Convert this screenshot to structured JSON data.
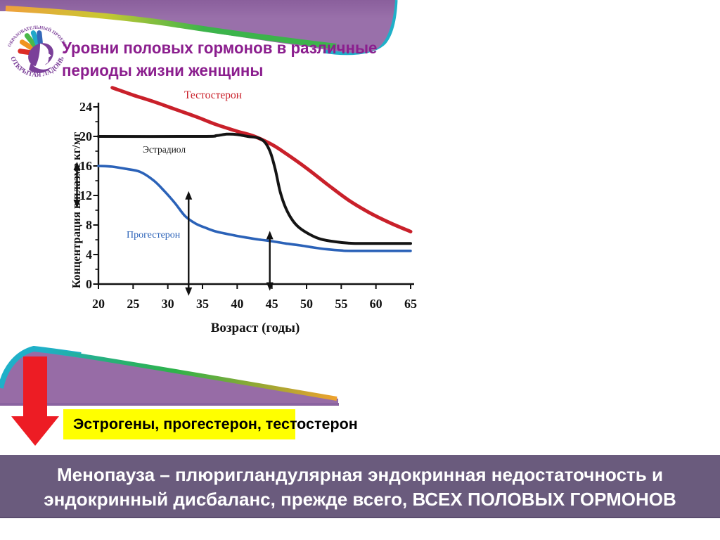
{
  "title": {
    "line1": "Уровни половых гормонов в различные",
    "line2": "периоды жизни женщины"
  },
  "logo": {
    "top_text": "ОБРАЗОВАТЕЛЬНЫЙ ПРОЕКТ",
    "bottom_text": "· ОТКРЫТАЯ ЛАДОНЬ ·"
  },
  "chart_data": {
    "type": "line",
    "title": "",
    "xlabel": "Возраст (годы)",
    "ylabel": "Концентрация в плазме кг/мг",
    "xlim": [
      20,
      65
    ],
    "ylim": [
      0,
      24
    ],
    "xticks": [
      20,
      25,
      30,
      35,
      40,
      45,
      50,
      55,
      60,
      65
    ],
    "yticks": [
      0,
      4,
      8,
      12,
      16,
      20,
      24
    ],
    "grid": false,
    "legend_position": "inline-labels",
    "series": [
      {
        "name": "Тестостерон",
        "color": "#c9202a",
        "points": [
          [
            22,
            26.6
          ],
          [
            25,
            25.6
          ],
          [
            28,
            24.7
          ],
          [
            31,
            23.7
          ],
          [
            34,
            22.7
          ],
          [
            37,
            21.6
          ],
          [
            40,
            20.7
          ],
          [
            42.5,
            20.0
          ],
          [
            45,
            18.9
          ],
          [
            47,
            17.7
          ],
          [
            50,
            15.7
          ],
          [
            53,
            13.5
          ],
          [
            56,
            11.4
          ],
          [
            59,
            9.7
          ],
          [
            62,
            8.3
          ],
          [
            65,
            7.1
          ]
        ]
      },
      {
        "name": "Эстрадиол",
        "color": "#141414",
        "points": [
          [
            20,
            20
          ],
          [
            35,
            20
          ],
          [
            37,
            20.1
          ],
          [
            38.5,
            20.3
          ],
          [
            40,
            20.25
          ],
          [
            41.5,
            20.0
          ],
          [
            43,
            19.8
          ],
          [
            44,
            19.2
          ],
          [
            44.8,
            17.8
          ],
          [
            45.5,
            15.5
          ],
          [
            46.2,
            12.5
          ],
          [
            47,
            10.3
          ],
          [
            48,
            8.6
          ],
          [
            49,
            7.6
          ],
          [
            50.5,
            6.7
          ],
          [
            52,
            6.1
          ],
          [
            54,
            5.75
          ],
          [
            56,
            5.55
          ],
          [
            58,
            5.5
          ],
          [
            65,
            5.5
          ]
        ]
      },
      {
        "name": "Прогестерон",
        "color": "#2b62b8",
        "points": [
          [
            20,
            16
          ],
          [
            22,
            15.9
          ],
          [
            24,
            15.6
          ],
          [
            26,
            15.2
          ],
          [
            28,
            14.0
          ],
          [
            29.5,
            12.6
          ],
          [
            31,
            11.0
          ],
          [
            32.5,
            9.2
          ],
          [
            34,
            8.2
          ],
          [
            35.5,
            7.6
          ],
          [
            37,
            7.1
          ],
          [
            39,
            6.7
          ],
          [
            41,
            6.35
          ],
          [
            43,
            6.05
          ],
          [
            45,
            5.8
          ],
          [
            47,
            5.5
          ],
          [
            49,
            5.25
          ],
          [
            51,
            4.95
          ],
          [
            53,
            4.7
          ],
          [
            55,
            4.55
          ],
          [
            56.5,
            4.5
          ],
          [
            65,
            4.5
          ]
        ]
      }
    ],
    "annotations": {
      "vertical_double_arrows": [
        {
          "x": 33,
          "from": -1.6,
          "to": 12.6
        },
        {
          "x": 44.7,
          "from": -0.9,
          "to": 7.2
        }
      ]
    }
  },
  "highlight": {
    "label": "Эстрогены, прогестерон, тестостерон",
    "bg": "#ffff00"
  },
  "banner": {
    "line1": "Менопауза – плюригландулярная  эндокринная недостаточность  и",
    "line2": "эндокринный  дисбаланс, прежде всего, ВСЕХ ПОЛОВЫХ ГОРМОНОВ",
    "bg": "#6a5b7d"
  },
  "colors": {
    "wedge_purple": "#9970aa",
    "wedge_purple_dark": "#8a5f9c",
    "band_purple": "#976ca6",
    "teal": "#1fb0c8",
    "green": "#3cb44b",
    "orange": "#eda33c",
    "red_arrow": "#ed1c24",
    "title_purple": "#8b1e8e"
  }
}
